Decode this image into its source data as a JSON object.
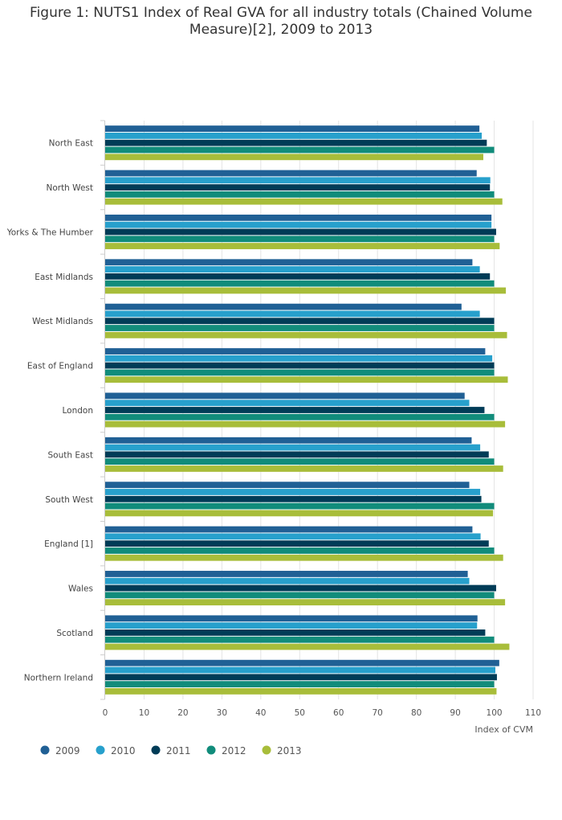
{
  "title_lines": [
    "Figure 1: NUTS1 Index of Real GVA for all industry totals (Chained Volume",
    "Measure)[2], 2009 to 2013"
  ],
  "chart_data": {
    "type": "bar",
    "orientation": "horizontal",
    "xlabel": "Index of CVM",
    "ylabel": "",
    "xlim": [
      0,
      110
    ],
    "xticks": [
      0,
      10,
      20,
      30,
      40,
      50,
      60,
      70,
      80,
      90,
      100,
      110
    ],
    "grid": "vertical",
    "legend_position": "bottom-left",
    "categories": [
      "North East",
      "North West",
      "Yorks & The Humber",
      "East Midlands",
      "West Midlands",
      "East of England",
      "London",
      "South East",
      "South West",
      "England [1]",
      "Wales",
      "Scotland",
      "Northern Ireland"
    ],
    "series": [
      {
        "name": "2009",
        "color": "#206095",
        "values": [
          96.2,
          95.5,
          99.3,
          94.4,
          91.6,
          97.7,
          92.4,
          94.2,
          93.6,
          94.4,
          93.2,
          95.7,
          101.3
        ]
      },
      {
        "name": "2010",
        "color": "#27a0cc",
        "values": [
          96.8,
          99.0,
          99.3,
          96.3,
          96.3,
          99.5,
          93.6,
          96.4,
          96.4,
          96.5,
          93.6,
          95.6,
          100.3
        ]
      },
      {
        "name": "2011",
        "color": "#003c57",
        "values": [
          98.1,
          98.9,
          100.5,
          98.9,
          100.0,
          100.0,
          97.5,
          98.6,
          96.7,
          98.6,
          100.5,
          97.7,
          100.7
        ]
      },
      {
        "name": "2012",
        "color": "#118c7b",
        "values": [
          100.0,
          100.0,
          100.0,
          100.0,
          100.0,
          100.0,
          100.0,
          100.0,
          100.0,
          100.0,
          100.0,
          100.0,
          100.0
        ]
      },
      {
        "name": "2013",
        "color": "#a8bd3a",
        "values": [
          97.2,
          102.1,
          101.4,
          103.0,
          103.3,
          103.5,
          102.8,
          102.3,
          99.7,
          102.3,
          102.8,
          103.9,
          100.6
        ]
      }
    ]
  }
}
